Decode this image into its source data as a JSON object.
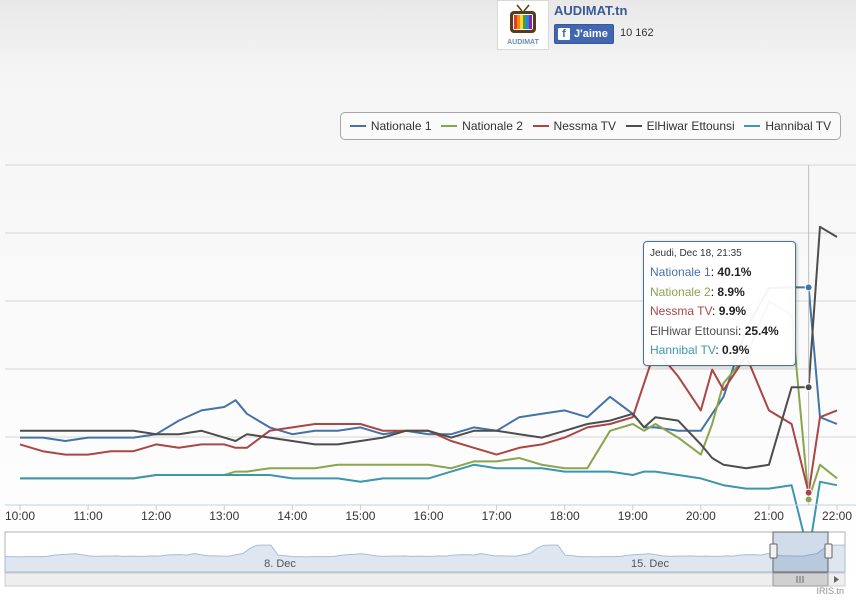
{
  "header": {
    "site_name": "AUDIMAT.tn",
    "logo_text": "AUDIMAT",
    "like_label": "J'aime",
    "like_icon": "facebook-f-icon",
    "like_count": "10 162"
  },
  "credit": "IRIS.tn",
  "tooltip": {
    "header": "Jeudi, Dec 18, 21:35",
    "rows": [
      {
        "label": "Nationale 1",
        "value": "40.1%"
      },
      {
        "label": "Nationale 2",
        "value": "8.9%"
      },
      {
        "label": "Nessma TV",
        "value": "9.9%"
      },
      {
        "label": "ElHiwar Ettounsi",
        "value": "25.4%"
      },
      {
        "label": "Hannibal TV",
        "value": "0.9%"
      }
    ]
  },
  "navigator": {
    "labels": [
      "8. Dec",
      "15. Dec"
    ]
  },
  "chart_data": {
    "type": "line",
    "title": "",
    "xlabel": "",
    "ylabel": "",
    "grid": true,
    "legend_position": "top-right",
    "x_ticks": [
      "10:00",
      "11:00",
      "12:00",
      "13:00",
      "14:00",
      "15:00",
      "16:00",
      "17:00",
      "18:00",
      "19:00",
      "20:00",
      "21:00",
      "22:00"
    ],
    "xlim": [
      "10:00",
      "22:00"
    ],
    "ylim": [
      0,
      50
    ],
    "x": [
      "10:00",
      "10:20",
      "10:40",
      "11:00",
      "11:20",
      "11:40",
      "12:00",
      "12:20",
      "12:40",
      "13:00",
      "13:10",
      "13:20",
      "13:40",
      "14:00",
      "14:20",
      "14:40",
      "15:00",
      "15:20",
      "15:40",
      "16:00",
      "16:20",
      "16:40",
      "17:00",
      "17:20",
      "17:40",
      "18:00",
      "18:20",
      "18:40",
      "19:00",
      "19:10",
      "19:20",
      "19:40",
      "20:00",
      "20:10",
      "20:20",
      "20:40",
      "21:00",
      "21:20",
      "21:35",
      "21:45",
      "22:00"
    ],
    "series": [
      {
        "name": "Nationale 1",
        "color": "#4572a7",
        "values": [
          18,
          18,
          17.5,
          18,
          18,
          18,
          18.5,
          20.5,
          22,
          22.5,
          23.5,
          21.5,
          19.5,
          18.5,
          19,
          19,
          19.5,
          18.5,
          19,
          18.5,
          18.5,
          19.5,
          19,
          21,
          21.5,
          22,
          21,
          24,
          21.5,
          19.5,
          19.5,
          19,
          19,
          21.5,
          24,
          34,
          40,
          40.1,
          40.1,
          21,
          20
        ]
      },
      {
        "name": "Nationale 2",
        "color": "#89a54e",
        "values": [
          12,
          12,
          12,
          12,
          12,
          12,
          12.5,
          12.5,
          12.5,
          12.5,
          13,
          13,
          13.5,
          13.5,
          13.5,
          14,
          14,
          14,
          14,
          14,
          13.5,
          14.5,
          14.5,
          15,
          14,
          13.5,
          13.5,
          19,
          20,
          19,
          20,
          18,
          15.5,
          20,
          26,
          30,
          38,
          36,
          8.9,
          14,
          12
        ]
      },
      {
        "name": "Nessma TV",
        "color": "#aa4643",
        "values": [
          17,
          16,
          15.5,
          15.5,
          16,
          16,
          17,
          16.5,
          17,
          17,
          16.5,
          16.5,
          19,
          19.5,
          20,
          20,
          20,
          19,
          19,
          19,
          17.5,
          16.5,
          15.5,
          16.5,
          17,
          18,
          19.5,
          20,
          21,
          26,
          31,
          27,
          22,
          28,
          25,
          30,
          22,
          20,
          9.9,
          21,
          22
        ]
      },
      {
        "name": "ElHiwar Ettounsi",
        "color": "#4d4d4d",
        "values": [
          19,
          19,
          19,
          19,
          19,
          19,
          18.5,
          18.5,
          19,
          18,
          17.5,
          18.5,
          18,
          17.5,
          17,
          17,
          17.5,
          18,
          19,
          19,
          18,
          19,
          19,
          18.5,
          18,
          19,
          20,
          20.5,
          21.5,
          19.5,
          21,
          20.5,
          17,
          15,
          14,
          13.5,
          14,
          25.4,
          25.4,
          49,
          47.5
        ]
      },
      {
        "name": "Hannibal TV",
        "color": "#3d96ae",
        "values": [
          12,
          12,
          12,
          12,
          12,
          12,
          12.5,
          12.5,
          12.5,
          12.5,
          12.5,
          12.5,
          12.5,
          12,
          12,
          12,
          11.5,
          12,
          12,
          12,
          13,
          14,
          13.5,
          13.5,
          13.5,
          13,
          13,
          13,
          12.5,
          13,
          13,
          12.5,
          12,
          11.5,
          11,
          10.5,
          10.5,
          11,
          0.9,
          11.5,
          11
        ]
      }
    ]
  }
}
